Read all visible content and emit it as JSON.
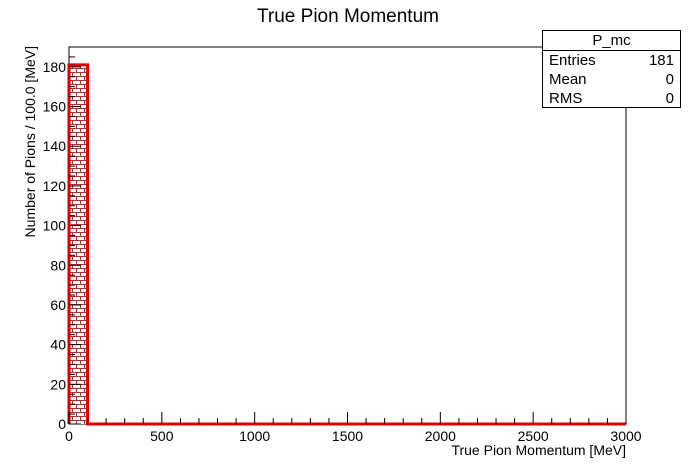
{
  "chart_data": {
    "type": "histogram",
    "title": "True Pion Momentum",
    "xlabel": "True Pion Momentum [MeV]",
    "ylabel": "Number of Pions / 100.0 [MeV]",
    "xlim": [
      0,
      3000
    ],
    "ylim": [
      0,
      190
    ],
    "bin_width": 100,
    "bins": [
      {
        "x_low": 0,
        "x_high": 100,
        "count": 181
      }
    ],
    "x_ticks": [
      0,
      500,
      1000,
      1500,
      2000,
      2500,
      3000
    ],
    "y_ticks": [
      0,
      20,
      40,
      60,
      80,
      100,
      120,
      140,
      160,
      180
    ],
    "colors": {
      "line": "#dd0000",
      "fill_pattern": "#aa3333",
      "axis": "#000000"
    }
  },
  "stats": {
    "name": "P_mc",
    "rows": [
      {
        "label": "Entries",
        "value": "181"
      },
      {
        "label": "Mean",
        "value": "0"
      },
      {
        "label": "RMS",
        "value": "0"
      }
    ]
  }
}
